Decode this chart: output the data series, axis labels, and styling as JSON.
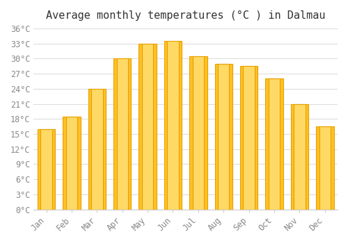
{
  "title": "Average monthly temperatures (°C ) in Dalmau",
  "months": [
    "Jan",
    "Feb",
    "Mar",
    "Apr",
    "May",
    "Jun",
    "Jul",
    "Aug",
    "Sep",
    "Oct",
    "Nov",
    "Dec"
  ],
  "values": [
    16.0,
    18.5,
    24.0,
    30.0,
    33.0,
    33.5,
    30.5,
    29.0,
    28.5,
    26.0,
    21.0,
    16.5
  ],
  "bar_color_face": "#FFC125",
  "bar_color_edge": "#F0A500",
  "bar_edge_color": "#E8A000",
  "ylim": [
    0,
    36
  ],
  "ytick_step": 3,
  "background_color": "#ffffff",
  "grid_color": "#dddddd",
  "title_fontsize": 11,
  "tick_fontsize": 8.5,
  "font_family": "monospace"
}
